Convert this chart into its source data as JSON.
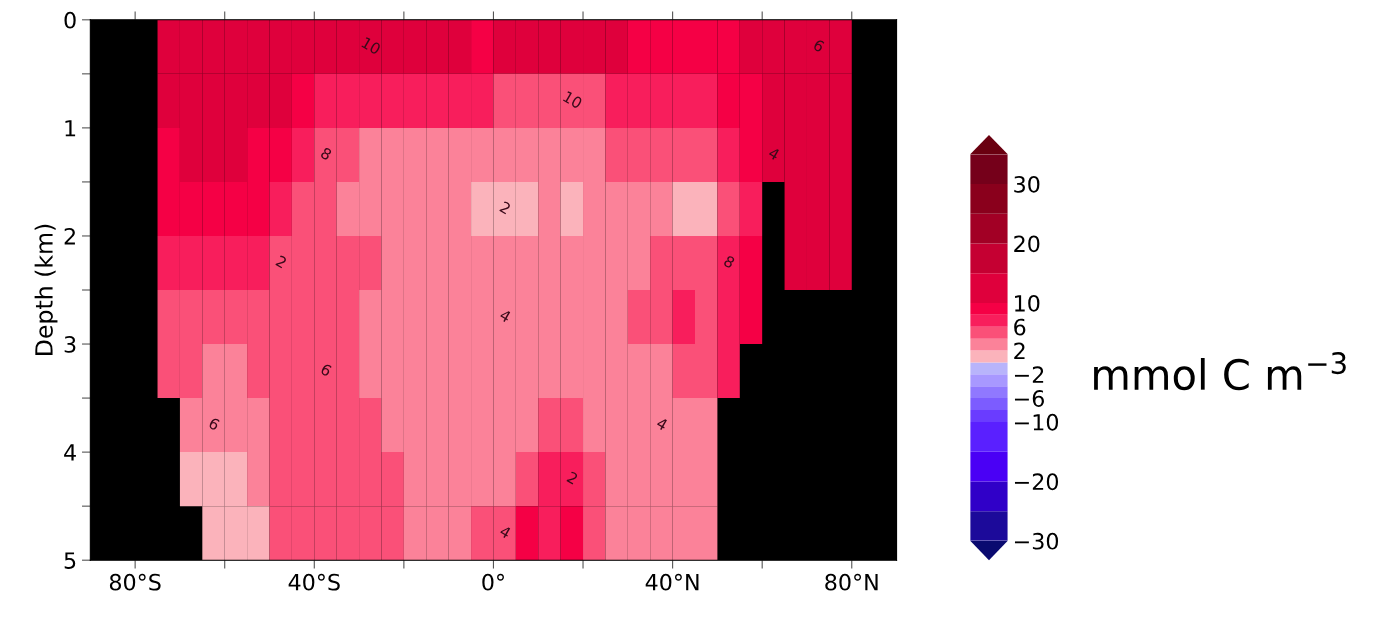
{
  "chart_data": {
    "type": "heatmap",
    "ylabel": "Depth (km)",
    "clabel": "mmol C m$^{−3}$",
    "x": [
      -87.5,
      -82.5,
      -77.5,
      -72.5,
      -67.5,
      -62.5,
      -57.5,
      -52.5,
      -47.5,
      -42.5,
      -37.5,
      -32.5,
      -27.5,
      -22.5,
      -17.5,
      -12.5,
      -7.5,
      -2.5,
      2.5,
      7.5,
      12.5,
      17.5,
      22.5,
      27.5,
      32.5,
      37.5,
      42.5,
      47.5,
      52.5,
      57.5,
      62.5,
      67.5,
      72.5,
      77.5,
      82.5,
      87.5
    ],
    "y": [
      0.25,
      0.75,
      1.25,
      1.75,
      2.25,
      2.75,
      3.25,
      3.75,
      4.25,
      4.75
    ],
    "cells": [
      [
        null,
        null,
        null,
        12,
        12,
        12,
        12,
        12,
        12,
        12,
        12,
        12,
        12,
        12,
        12,
        12,
        12,
        9,
        12,
        12,
        12,
        12,
        12,
        12,
        9,
        9,
        9,
        9,
        9,
        12,
        12,
        12,
        12,
        12,
        null,
        null
      ],
      [
        null,
        null,
        null,
        12,
        12,
        12,
        12,
        12,
        12,
        9,
        7,
        7,
        7,
        7,
        7,
        7,
        7,
        7,
        5,
        5,
        5,
        5,
        5,
        7,
        7,
        7,
        7,
        7,
        9,
        9,
        12,
        12,
        12,
        12,
        null,
        null
      ],
      [
        null,
        null,
        null,
        9,
        12,
        12,
        12,
        9,
        9,
        7,
        5,
        5,
        3,
        3,
        3,
        3,
        3,
        3,
        3,
        3,
        3,
        3,
        3,
        5,
        5,
        5,
        5,
        5,
        7,
        9,
        12,
        12,
        12,
        12,
        null,
        null
      ],
      [
        null,
        null,
        null,
        9,
        9,
        9,
        9,
        9,
        7,
        5,
        5,
        3,
        3,
        3,
        3,
        3,
        3,
        1,
        1,
        1,
        3,
        1,
        3,
        3,
        3,
        3,
        1,
        1,
        5,
        7,
        null,
        12,
        12,
        12,
        null,
        null
      ],
      [
        null,
        null,
        null,
        7,
        7,
        7,
        7,
        7,
        5,
        5,
        5,
        5,
        5,
        3,
        3,
        3,
        3,
        3,
        3,
        3,
        3,
        3,
        3,
        3,
        3,
        5,
        5,
        5,
        7,
        9,
        null,
        12,
        12,
        12,
        null,
        null
      ],
      [
        null,
        null,
        null,
        5,
        5,
        5,
        5,
        5,
        5,
        5,
        5,
        5,
        3,
        3,
        3,
        3,
        3,
        3,
        3,
        3,
        3,
        3,
        3,
        3,
        5,
        5,
        7,
        5,
        7,
        9,
        null,
        null,
        null,
        null,
        null,
        null
      ],
      [
        null,
        null,
        null,
        5,
        5,
        3,
        3,
        5,
        5,
        5,
        5,
        5,
        3,
        3,
        3,
        3,
        3,
        3,
        3,
        3,
        3,
        3,
        3,
        3,
        3,
        3,
        5,
        5,
        7,
        null,
        null,
        null,
        null,
        null,
        null,
        null
      ],
      [
        null,
        null,
        null,
        null,
        3,
        3,
        3,
        3,
        5,
        5,
        5,
        5,
        5,
        3,
        3,
        3,
        3,
        3,
        3,
        3,
        5,
        5,
        3,
        3,
        3,
        3,
        3,
        3,
        null,
        null,
        null,
        null,
        null,
        null,
        null,
        null
      ],
      [
        null,
        null,
        null,
        null,
        1,
        1,
        1,
        3,
        5,
        5,
        5,
        5,
        5,
        5,
        3,
        3,
        3,
        3,
        3,
        5,
        7,
        7,
        5,
        3,
        3,
        3,
        3,
        3,
        null,
        null,
        null,
        null,
        null,
        null,
        null,
        null
      ],
      [
        null,
        null,
        null,
        null,
        null,
        1,
        1,
        1,
        5,
        5,
        5,
        5,
        5,
        5,
        3,
        3,
        3,
        5,
        5,
        9,
        7,
        9,
        5,
        3,
        3,
        3,
        3,
        3,
        null,
        null,
        null,
        null,
        null,
        null,
        null,
        null
      ]
    ],
    "xlim": [
      -90,
      90
    ],
    "xticks": [
      {
        "value": -80,
        "label": "80°S"
      },
      {
        "value": -60,
        "label": null
      },
      {
        "value": -40,
        "label": "40°S"
      },
      {
        "value": -20,
        "label": null
      },
      {
        "value": 0,
        "label": "0°"
      },
      {
        "value": 20,
        "label": null
      },
      {
        "value": 40,
        "label": "40°N"
      },
      {
        "value": 60,
        "label": null
      },
      {
        "value": 80,
        "label": "80°N"
      }
    ],
    "ylim": [
      5,
      0
    ],
    "yticks": [
      0,
      {
        "value": 0.5,
        "label": null
      },
      1,
      {
        "value": 1.5,
        "label": null
      },
      2,
      {
        "value": 2.5,
        "label": null
      },
      3,
      {
        "value": 3.5,
        "label": null
      },
      4,
      {
        "value": 4.5,
        "label": null
      },
      5
    ],
    "cticks": [
      {
        "value": -30,
        "label": "−30"
      },
      {
        "value": -25,
        "label": null
      },
      {
        "value": -20,
        "label": "−20"
      },
      {
        "value": -15,
        "label": null
      },
      {
        "value": -10,
        "label": "−10"
      },
      {
        "value": -8,
        "label": null
      },
      {
        "value": -6,
        "label": "−6"
      },
      {
        "value": -4,
        "label": null
      },
      {
        "value": -2,
        "label": "−2"
      },
      {
        "value": 0,
        "label": null
      },
      {
        "value": 2,
        "label": "2"
      },
      {
        "value": 4,
        "label": null
      },
      {
        "value": 6,
        "label": "6"
      },
      {
        "value": 8,
        "label": null
      },
      {
        "value": 10,
        "label": "10"
      },
      {
        "value": 15,
        "label": null
      },
      {
        "value": 20,
        "label": "20"
      },
      {
        "value": 25,
        "label": null
      },
      {
        "value": 30,
        "label": "30"
      },
      {
        "value": 35,
        "label": null
      }
    ],
    "colors": [
      "#0a0a70",
      "#1c0a9a",
      "#3000c8",
      "#4a00f5",
      "#5a20ff",
      "#6a3cff",
      "#7c5cff",
      "#9078ff",
      "#a898ff",
      "#b8b4fb",
      "#fbb3bb",
      "#fb8299",
      "#fa5078",
      "#f81e5c",
      "#f50045",
      "#df003c",
      "#c50032",
      "#a20025",
      "#8a001c",
      "#75001a",
      "#6a0010"
    ],
    "annotations": [
      "10",
      "6",
      "10",
      "8",
      "4",
      "2",
      "2",
      "8",
      "4",
      "6",
      "6",
      "4",
      "2",
      "4"
    ]
  }
}
